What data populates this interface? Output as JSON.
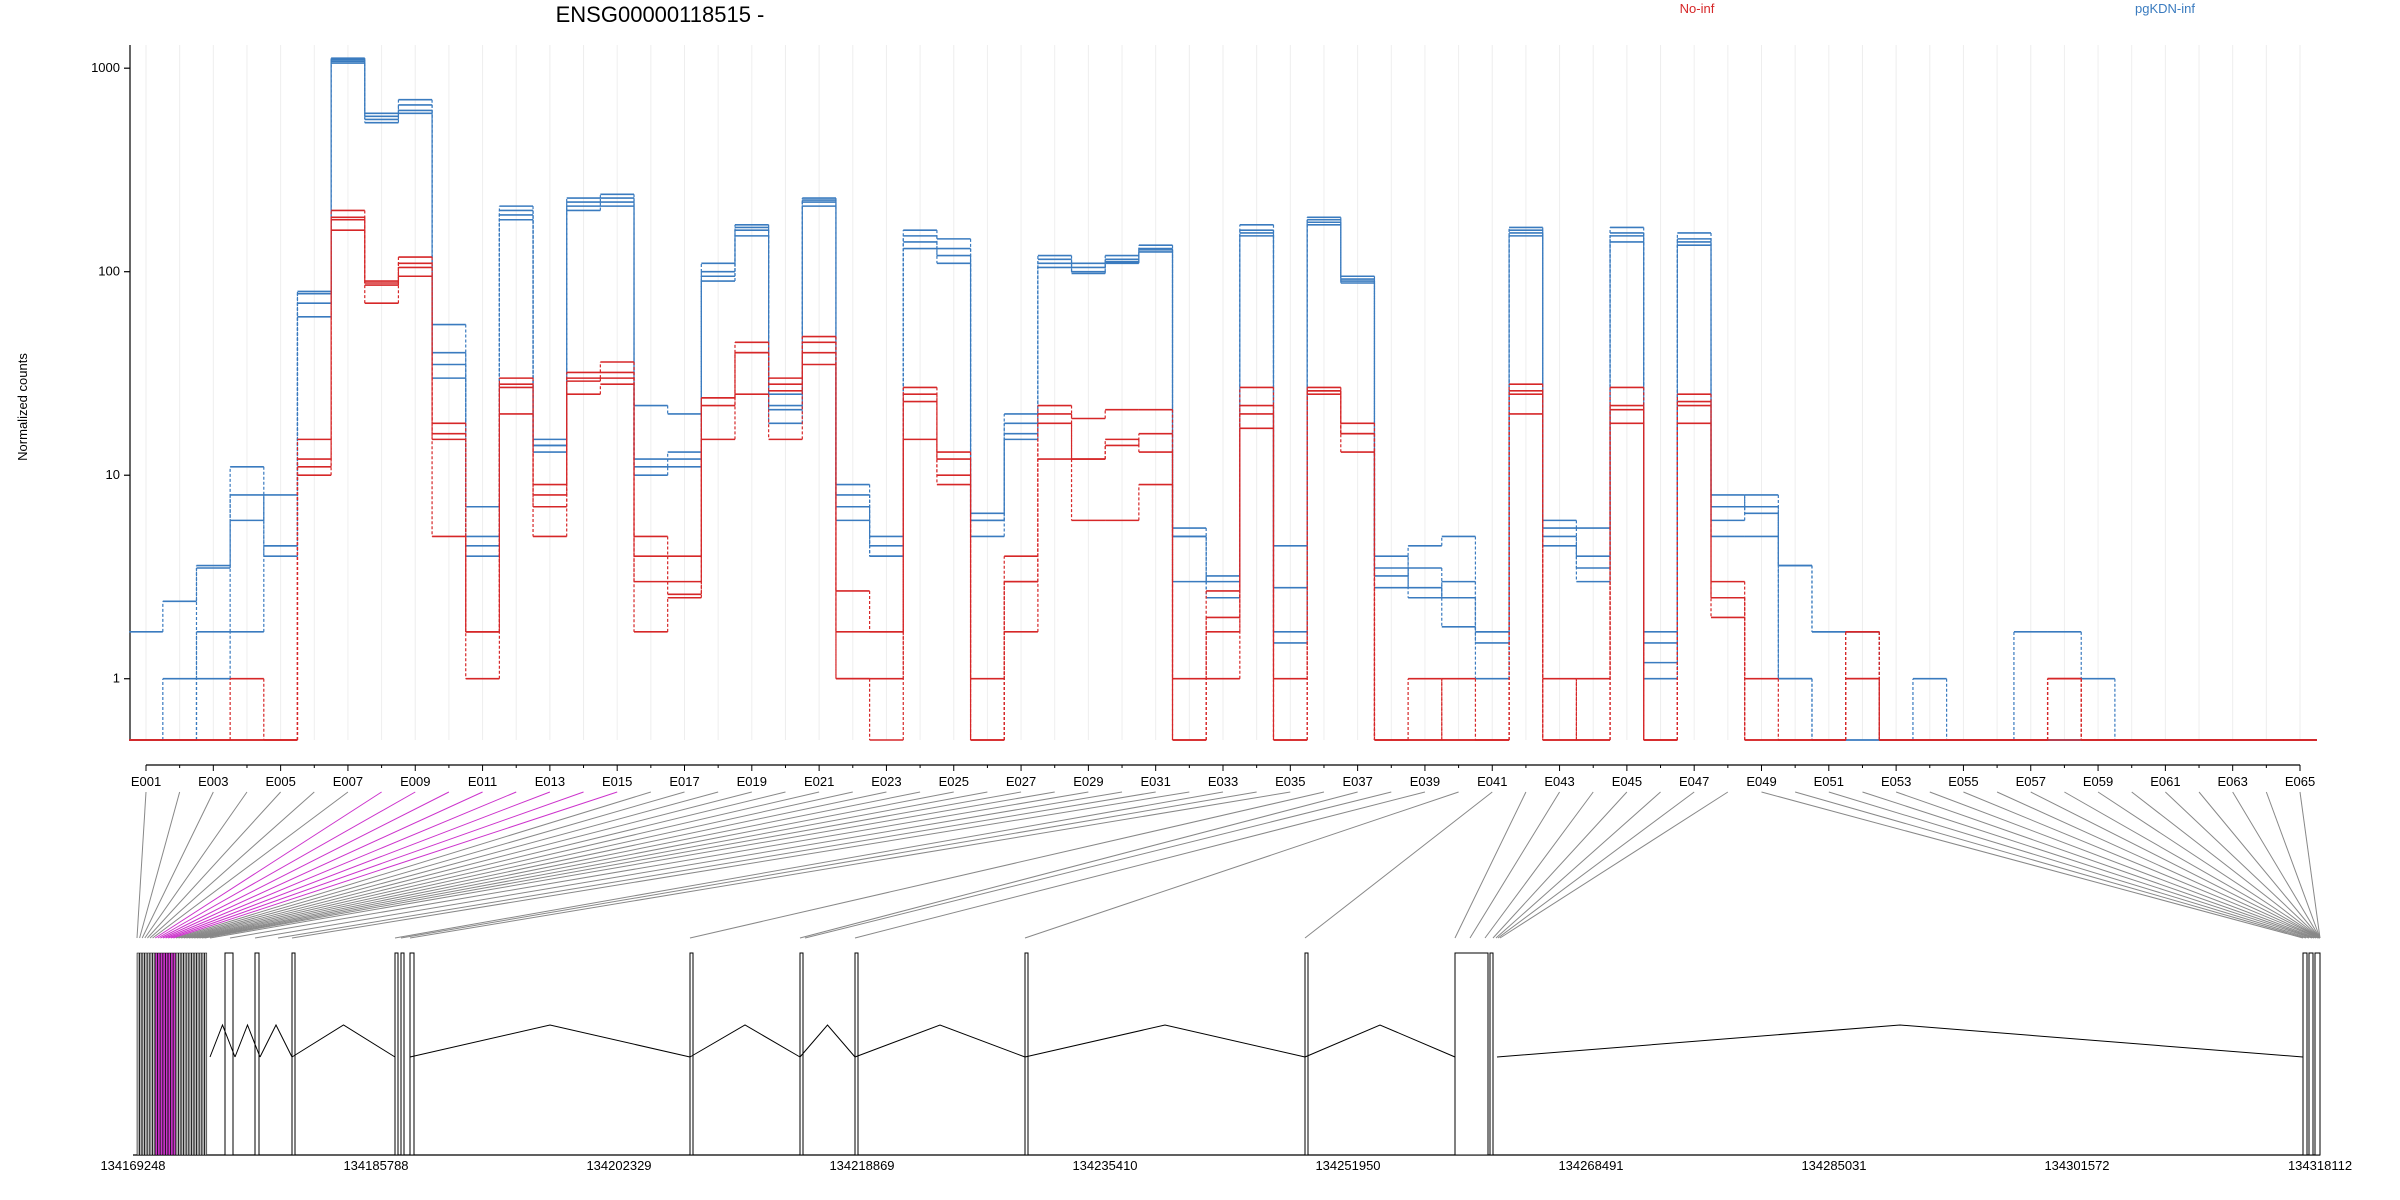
{
  "chart_data": {
    "type": "line",
    "title": "ENSG00000118515 -",
    "ylabel": "Normalized counts",
    "yscale": "log",
    "ylim": [
      0.5,
      1300
    ],
    "yticks": [
      1,
      10,
      100,
      1000
    ],
    "ytick_labels": [
      "1",
      "10",
      "100",
      "1000"
    ],
    "grid": true,
    "legend_position": "top",
    "colors": {
      "No-inf": "#d62728",
      "pgKDN-inf": "#3a7bbf",
      "highlight": "#cc33cc",
      "gray": "#888888"
    },
    "exon_labels": [
      "E001",
      "E003",
      "E005",
      "E007",
      "E009",
      "E011",
      "E013",
      "E015",
      "E017",
      "E019",
      "E021",
      "E023",
      "E025",
      "E027",
      "E029",
      "E031",
      "E033",
      "E035",
      "E037",
      "E039",
      "E041",
      "E043",
      "E045",
      "E047",
      "E049",
      "E051",
      "E053",
      "E055",
      "E057",
      "E059",
      "E061",
      "E063",
      "E065"
    ],
    "series": [
      {
        "name": "pgKDN-inf",
        "group": "pgKDN-inf",
        "values": [
          0.5,
          0.5,
          1.0,
          1.7,
          4.5,
          60,
          1100,
          580,
          620,
          40,
          7,
          190,
          15,
          220,
          230,
          12,
          12,
          90,
          160,
          25,
          230,
          9,
          5,
          140,
          130,
          6,
          18,
          110,
          100,
          115,
          130,
          5,
          2.5,
          160,
          1.7,
          180,
          92,
          3.5,
          2.8,
          1.8,
          1.7,
          160,
          5,
          3,
          150,
          1.7,
          145,
          5,
          5,
          3.6,
          1.7,
          1.7,
          0.5,
          0.5,
          0.5,
          0.5,
          0.5,
          0.5,
          0.5,
          0.5,
          0.5,
          0.5,
          0.5,
          0.5,
          0.5
        ]
      },
      {
        "name": "pgKDN-inf",
        "group": "pgKDN-inf",
        "values": [
          1.7,
          2.4,
          3.6,
          6.0,
          8.0,
          80,
          1120,
          560,
          660,
          55,
          5,
          210,
          13,
          230,
          240,
          22,
          20,
          100,
          170,
          21,
          220,
          8,
          4,
          160,
          145,
          5,
          20,
          120,
          110,
          120,
          135,
          5.5,
          3,
          170,
          1.5,
          185,
          95,
          3.2,
          4.5,
          5,
          1.7,
          165,
          6,
          5.5,
          165,
          1.5,
          155,
          8,
          7,
          3.6,
          1.7,
          1.7,
          0.5,
          1.0,
          0.5,
          0.5,
          1.7,
          1.7,
          1.0,
          0.5,
          0.5,
          0.5,
          0.5,
          0.5,
          0.5
        ]
      },
      {
        "name": "pgKDN-inf",
        "group": "pgKDN-inf",
        "values": [
          0.5,
          1.0,
          1.7,
          11,
          4.0,
          78,
          1080,
          540,
          700,
          35,
          4,
          200,
          14,
          200,
          220,
          11,
          13,
          110,
          165,
          18,
          225,
          7,
          4.5,
          130,
          120,
          6.5,
          15,
          115,
          98,
          110,
          125,
          3,
          3.2,
          150,
          4.5,
          175,
          90,
          4.0,
          2.5,
          3,
          1.0,
          155,
          4.5,
          3.5,
          155,
          1.0,
          140,
          6,
          8,
          1.0,
          0.5,
          0.5,
          0.5,
          0.5,
          0.5,
          0.5,
          0.5,
          0.5,
          0.5,
          0.5,
          0.5,
          0.5,
          0.5,
          0.5,
          0.5
        ]
      },
      {
        "name": "pgKDN-inf",
        "group": "pgKDN-inf",
        "values": [
          0.5,
          0.5,
          3.5,
          8.0,
          4.5,
          70,
          1060,
          600,
          600,
          30,
          4.5,
          180,
          14,
          210,
          210,
          10,
          11,
          95,
          150,
          22,
          210,
          6,
          4,
          150,
          110,
          6,
          16,
          105,
          105,
          112,
          128,
          5,
          2.5,
          155,
          2.8,
          170,
          88,
          2.8,
          3.5,
          2.5,
          1.5,
          150,
          5.5,
          4,
          140,
          1.2,
          135,
          7,
          6.5,
          1.0,
          0.5,
          0.5,
          0.5,
          0.5,
          0.5,
          0.5,
          0.5,
          0.5,
          0.5,
          0.5,
          0.5,
          0.5,
          0.5,
          0.5,
          0.5
        ]
      },
      {
        "name": "No-inf",
        "group": "No-inf",
        "values": [
          0.5,
          0.5,
          0.5,
          0.5,
          0.5,
          12,
          180,
          90,
          110,
          15,
          1.7,
          28,
          9,
          32,
          36,
          5,
          4,
          24,
          45,
          28,
          48,
          2.7,
          1.7,
          25,
          10,
          1.0,
          4,
          20,
          19,
          21,
          21,
          1.0,
          2.7,
          22,
          0.5,
          27,
          18,
          0.5,
          1.0,
          0.5,
          0.5,
          25,
          0.5,
          1.0,
          22,
          0.5,
          23,
          2.5,
          1.0,
          0.5,
          0.5,
          1.7,
          0.5,
          0.5,
          0.5,
          0.5,
          0.5,
          1.0,
          0.5,
          0.5,
          0.5,
          0.5,
          0.5,
          0.5,
          0.5
        ]
      },
      {
        "name": "No-inf",
        "group": "No-inf",
        "values": [
          0.5,
          0.5,
          0.5,
          1.0,
          0.5,
          15,
          200,
          86,
          118,
          18,
          1.0,
          30,
          8,
          30,
          32,
          4,
          3,
          22,
          40,
          30,
          45,
          1.0,
          0.5,
          27,
          13,
          0.5,
          3,
          18,
          12,
          14,
          16,
          0.5,
          2.0,
          27,
          1.0,
          26,
          16,
          0.5,
          0.5,
          1.0,
          0.5,
          28,
          1.0,
          0.5,
          27,
          0.5,
          25,
          3,
          0.5,
          0.5,
          0.5,
          1.7,
          0.5,
          0.5,
          0.5,
          0.5,
          0.5,
          1.0,
          0.5,
          0.5,
          0.5,
          0.5,
          0.5,
          0.5,
          0.5
        ]
      },
      {
        "name": "No-inf",
        "group": "No-inf",
        "values": [
          0.5,
          0.5,
          0.5,
          0.5,
          0.5,
          10,
          160,
          70,
          95,
          5,
          1.7,
          20,
          5,
          25,
          28,
          1.7,
          2.5,
          15,
          25,
          15,
          35,
          1.0,
          1.0,
          15,
          9,
          0.5,
          1.7,
          12,
          6,
          6,
          9,
          0.5,
          1.0,
          17,
          0.5,
          25,
          13,
          0.5,
          0.5,
          0.5,
          0.5,
          20,
          0.5,
          0.5,
          18,
          0.5,
          18,
          2,
          0.5,
          0.5,
          0.5,
          1.0,
          0.5,
          0.5,
          0.5,
          0.5,
          0.5,
          0.5,
          0.5,
          0.5,
          0.5,
          0.5,
          0.5,
          0.5,
          0.5
        ]
      },
      {
        "name": "No-inf",
        "group": "No-inf",
        "values": [
          0.5,
          0.5,
          0.5,
          0.5,
          0.5,
          11,
          185,
          88,
          105,
          16,
          1.7,
          27,
          7,
          29,
          30,
          3,
          2.6,
          24,
          40,
          26,
          40,
          1.7,
          1.7,
          23,
          12,
          0.5,
          3,
          22,
          12,
          15,
          13,
          0.5,
          1.7,
          20,
          0.5,
          26,
          16,
          0.5,
          0.5,
          0.5,
          0.5,
          26,
          0.5,
          0.5,
          21,
          0.5,
          22,
          2.5,
          0.5,
          0.5,
          0.5,
          1.0,
          0.5,
          0.5,
          0.5,
          0.5,
          0.5,
          1.0,
          0.5,
          0.5,
          0.5,
          0.5,
          0.5,
          0.5,
          0.5
        ]
      }
    ],
    "gene_model": {
      "coord_labels": [
        "134169248",
        "134185788",
        "134202329",
        "134218869",
        "134235410",
        "134251950",
        "134268491",
        "134285031",
        "134301572",
        "134318112"
      ]
    }
  }
}
